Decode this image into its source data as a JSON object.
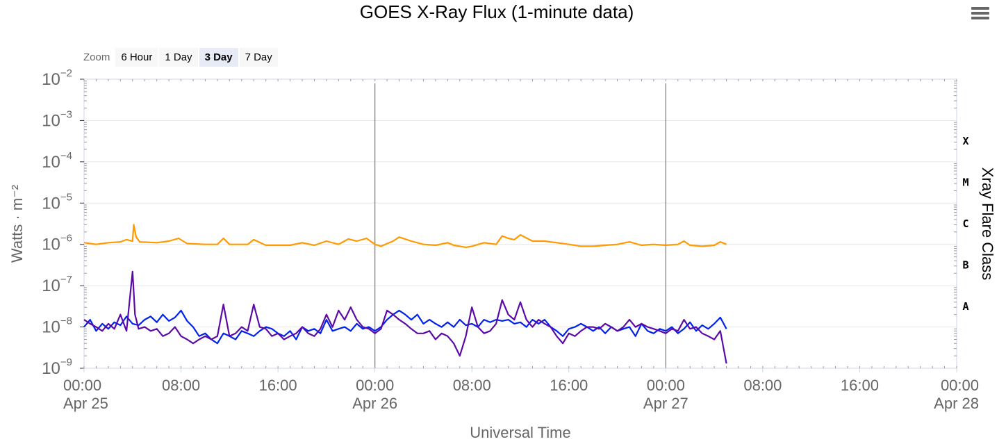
{
  "title": "GOES X-Ray Flux (1-minute data)",
  "menu": {
    "icon": "hamburger-menu-icon"
  },
  "zoom": {
    "label": "Zoom",
    "buttons": [
      {
        "label": "6 Hour",
        "active": false
      },
      {
        "label": "1 Day",
        "active": false
      },
      {
        "label": "3 Day",
        "active": true
      },
      {
        "label": "7 Day",
        "active": false
      }
    ]
  },
  "chart_data": {
    "type": "line",
    "title": "GOES X-Ray Flux (1-minute data)",
    "xlabel": "Universal Time",
    "ylabel": "Watts · m⁻²",
    "y_scale": "log",
    "ylim": [
      1e-09,
      0.01
    ],
    "xlim_hours": [
      0,
      72
    ],
    "grid": true,
    "legend": "none",
    "y_ticks": [
      {
        "base": "10",
        "exp": "−2",
        "value": 0.01
      },
      {
        "base": "10",
        "exp": "−3",
        "value": 0.001
      },
      {
        "base": "10",
        "exp": "−4",
        "value": 0.0001
      },
      {
        "base": "10",
        "exp": "−5",
        "value": 1e-05
      },
      {
        "base": "10",
        "exp": "−6",
        "value": 1e-06
      },
      {
        "base": "10",
        "exp": "−7",
        "value": 1e-07
      },
      {
        "base": "10",
        "exp": "−8",
        "value": 1e-08
      },
      {
        "base": "10",
        "exp": "−9",
        "value": 1e-09
      }
    ],
    "x_ticks": [
      {
        "hour": 0,
        "time": "00:00",
        "date": "Apr 25"
      },
      {
        "hour": 8,
        "time": "08:00",
        "date": ""
      },
      {
        "hour": 16,
        "time": "16:00",
        "date": ""
      },
      {
        "hour": 24,
        "time": "00:00",
        "date": "Apr 26"
      },
      {
        "hour": 32,
        "time": "08:00",
        "date": ""
      },
      {
        "hour": 40,
        "time": "16:00",
        "date": ""
      },
      {
        "hour": 48,
        "time": "00:00",
        "date": "Apr 27"
      },
      {
        "hour": 56,
        "time": "08:00",
        "date": ""
      },
      {
        "hour": 64,
        "time": "16:00",
        "date": ""
      },
      {
        "hour": 72,
        "time": "00:00",
        "date": "Apr 28"
      }
    ],
    "day_boundaries_hours": [
      24,
      48
    ],
    "right_axis": {
      "label": "Xray Flare Class",
      "classes": [
        {
          "label": "X",
          "value": 0.000316
        },
        {
          "label": "M",
          "value": 3.16e-05
        },
        {
          "label": "C",
          "value": 3.16e-06
        },
        {
          "label": "B",
          "value": 3.16e-07
        },
        {
          "label": "A",
          "value": 3.16e-08
        }
      ]
    },
    "series": [
      {
        "color": "#ff9900",
        "points": [
          [
            0,
            1.1e-06
          ],
          [
            1,
            1e-06
          ],
          [
            2,
            1.1e-06
          ],
          [
            3,
            1.15e-06
          ],
          [
            3.5,
            1.3e-06
          ],
          [
            4,
            1.2e-06
          ],
          [
            4.1,
            3e-06
          ],
          [
            4.3,
            1.5e-06
          ],
          [
            4.6,
            1.15e-06
          ],
          [
            6,
            1.1e-06
          ],
          [
            7,
            1.2e-06
          ],
          [
            7.8,
            1.4e-06
          ],
          [
            8.5,
            1.05e-06
          ],
          [
            10,
            1e-06
          ],
          [
            11,
            1e-06
          ],
          [
            11.5,
            1.4e-06
          ],
          [
            12,
            1e-06
          ],
          [
            13.5,
            1e-06
          ],
          [
            14,
            1.3e-06
          ],
          [
            15,
            9.5e-07
          ],
          [
            17,
            9.5e-07
          ],
          [
            18,
            1.1e-06
          ],
          [
            19,
            9.5e-07
          ],
          [
            20,
            1.2e-06
          ],
          [
            21,
            1e-06
          ],
          [
            21.8,
            1.35e-06
          ],
          [
            22.5,
            1.2e-06
          ],
          [
            23.3,
            1.4e-06
          ],
          [
            24,
            1e-06
          ],
          [
            24.5,
            9e-07
          ],
          [
            25.5,
            1.2e-06
          ],
          [
            26,
            1.5e-06
          ],
          [
            27,
            1.2e-06
          ],
          [
            28,
            1e-06
          ],
          [
            29,
            9.5e-07
          ],
          [
            30,
            1.1e-06
          ],
          [
            30.5,
            9.5e-07
          ],
          [
            31.5,
            8.5e-07
          ],
          [
            32,
            9e-07
          ],
          [
            33,
            1.1e-06
          ],
          [
            34,
            1e-06
          ],
          [
            34.5,
            1.6e-06
          ],
          [
            35,
            1.4e-06
          ],
          [
            35.5,
            1.3e-06
          ],
          [
            36,
            1.7e-06
          ],
          [
            37,
            1.2e-06
          ],
          [
            38,
            1.2e-06
          ],
          [
            39,
            1.1e-06
          ],
          [
            40,
            1e-06
          ],
          [
            41,
            9e-07
          ],
          [
            42,
            9e-07
          ],
          [
            43,
            9.5e-07
          ],
          [
            44,
            1e-06
          ],
          [
            45,
            1.15e-06
          ],
          [
            46,
            9.5e-07
          ],
          [
            47,
            1e-06
          ],
          [
            48,
            9.5e-07
          ],
          [
            49,
            1e-06
          ],
          [
            49.5,
            1.2e-06
          ],
          [
            50,
            9.5e-07
          ],
          [
            51,
            9e-07
          ],
          [
            52,
            9.5e-07
          ],
          [
            52.5,
            1.15e-06
          ],
          [
            53,
            1e-06
          ]
        ]
      },
      {
        "color": "#0022ee",
        "points": [
          [
            0,
            1e-08
          ],
          [
            0.5,
            1.5e-08
          ],
          [
            1,
            8e-09
          ],
          [
            1.5,
            1.2e-08
          ],
          [
            2,
            9e-09
          ],
          [
            2.5,
            1.3e-08
          ],
          [
            3,
            1.1e-08
          ],
          [
            3.5,
            1.8e-08
          ],
          [
            4,
            1.2e-08
          ],
          [
            4.5,
            1.1e-08
          ],
          [
            5,
            1.5e-08
          ],
          [
            5.5,
            1.8e-08
          ],
          [
            6,
            1.3e-08
          ],
          [
            6.5,
            2e-08
          ],
          [
            7,
            1.4e-08
          ],
          [
            7.5,
            1.7e-08
          ],
          [
            8,
            2.5e-08
          ],
          [
            8.5,
            1.4e-08
          ],
          [
            9,
            1e-08
          ],
          [
            9.5,
            6e-09
          ],
          [
            10,
            7e-09
          ],
          [
            10.5,
            5e-09
          ],
          [
            11,
            4e-09
          ],
          [
            11.5,
            7e-09
          ],
          [
            12,
            6e-09
          ],
          [
            12.5,
            5e-09
          ],
          [
            13,
            8e-09
          ],
          [
            13.5,
            7e-09
          ],
          [
            14,
            6e-09
          ],
          [
            14.5,
            8e-09
          ],
          [
            15,
            1e-08
          ],
          [
            15.5,
            9e-09
          ],
          [
            16,
            7e-09
          ],
          [
            16.5,
            6e-09
          ],
          [
            17,
            8e-09
          ],
          [
            17.5,
            5e-09
          ],
          [
            18,
            1e-08
          ],
          [
            18.5,
            8e-09
          ],
          [
            19,
            9e-09
          ],
          [
            19.5,
            7e-09
          ],
          [
            20,
            1.5e-08
          ],
          [
            20.5,
            8e-09
          ],
          [
            21,
            9e-09
          ],
          [
            21.5,
            1e-08
          ],
          [
            22,
            8e-09
          ],
          [
            22.5,
            1.2e-08
          ],
          [
            23,
            9e-09
          ],
          [
            23.5,
            1e-08
          ],
          [
            24,
            8e-09
          ],
          [
            24.5,
            1e-08
          ],
          [
            25,
            1.5e-08
          ],
          [
            25.5,
            2e-08
          ],
          [
            26,
            2.5e-08
          ],
          [
            26.5,
            2e-08
          ],
          [
            27,
            1.5e-08
          ],
          [
            27.5,
            2e-08
          ],
          [
            28,
            1.2e-08
          ],
          [
            28.5,
            1.5e-08
          ],
          [
            29,
            1.2e-08
          ],
          [
            29.5,
            1e-08
          ],
          [
            30,
            1.3e-08
          ],
          [
            30.5,
            1e-08
          ],
          [
            31,
            1.5e-08
          ],
          [
            31.5,
            1.1e-08
          ],
          [
            32,
            1.2e-08
          ],
          [
            32.5,
            1e-08
          ],
          [
            33,
            1.5e-08
          ],
          [
            33.5,
            1.3e-08
          ],
          [
            34,
            1.5e-08
          ],
          [
            34.5,
            1.4e-08
          ],
          [
            35,
            1.5e-08
          ],
          [
            35.5,
            1.2e-08
          ],
          [
            36,
            1.3e-08
          ],
          [
            36.5,
            1e-08
          ],
          [
            37,
            1.5e-08
          ],
          [
            37.5,
            1.2e-08
          ],
          [
            38,
            1.5e-08
          ],
          [
            38.5,
            1e-08
          ],
          [
            39,
            8e-09
          ],
          [
            39.5,
            6e-09
          ],
          [
            40,
            9e-09
          ],
          [
            40.5,
            1e-08
          ],
          [
            41,
            1.2e-08
          ],
          [
            41.5,
            1e-08
          ],
          [
            42,
            8e-09
          ],
          [
            42.5,
            1e-08
          ],
          [
            43,
            7e-09
          ],
          [
            43.5,
            1e-08
          ],
          [
            44,
            8e-09
          ],
          [
            44.5,
            9e-09
          ],
          [
            45,
            1e-08
          ],
          [
            45.5,
            6e-09
          ],
          [
            46,
            1.2e-08
          ],
          [
            46.5,
            8e-09
          ],
          [
            47,
            7e-09
          ],
          [
            47.5,
            9e-09
          ],
          [
            48,
            8e-09
          ],
          [
            48.5,
            1e-08
          ],
          [
            49,
            7e-09
          ],
          [
            49.5,
            9e-09
          ],
          [
            50,
            1.3e-08
          ],
          [
            50.5,
            8e-09
          ],
          [
            51,
            1.1e-08
          ],
          [
            51.5,
            9e-09
          ],
          [
            52,
            1.2e-08
          ],
          [
            52.5,
            1.7e-08
          ],
          [
            53,
            9e-09
          ]
        ]
      },
      {
        "color": "#5b0aa8",
        "points": [
          [
            0,
            1.5e-08
          ],
          [
            0.5,
            1.2e-08
          ],
          [
            1,
            1e-08
          ],
          [
            1.5,
            8e-09
          ],
          [
            2,
            1.2e-08
          ],
          [
            2.5,
            9e-09
          ],
          [
            3,
            2e-08
          ],
          [
            3.5,
            8e-09
          ],
          [
            4,
            2.2e-07
          ],
          [
            4.2,
            2e-08
          ],
          [
            4.5,
            9e-09
          ],
          [
            5,
            1e-08
          ],
          [
            5.5,
            8e-09
          ],
          [
            6,
            9e-09
          ],
          [
            6.5,
            6e-09
          ],
          [
            7,
            7e-09
          ],
          [
            7.5,
            1e-08
          ],
          [
            8,
            6e-09
          ],
          [
            8.5,
            5e-09
          ],
          [
            9,
            4e-09
          ],
          [
            9.5,
            5e-09
          ],
          [
            10,
            6e-09
          ],
          [
            10.5,
            5e-09
          ],
          [
            11,
            6e-09
          ],
          [
            11.5,
            3.5e-08
          ],
          [
            12,
            6e-09
          ],
          [
            12.5,
            7e-09
          ],
          [
            13,
            1e-08
          ],
          [
            13.5,
            8e-09
          ],
          [
            14,
            3.5e-08
          ],
          [
            14.5,
            1e-08
          ],
          [
            15,
            9e-09
          ],
          [
            15.5,
            6e-09
          ],
          [
            16,
            7e-09
          ],
          [
            16.5,
            5e-09
          ],
          [
            17,
            6e-09
          ],
          [
            17.5,
            7e-09
          ],
          [
            18,
            1e-08
          ],
          [
            18.5,
            7e-09
          ],
          [
            19,
            6e-09
          ],
          [
            19.5,
            9e-09
          ],
          [
            20,
            2e-08
          ],
          [
            20.5,
            1e-08
          ],
          [
            21,
            2.5e-08
          ],
          [
            21.5,
            1.5e-08
          ],
          [
            22,
            3e-08
          ],
          [
            22.5,
            1.5e-08
          ],
          [
            23,
            1e-08
          ],
          [
            23.5,
            9e-09
          ],
          [
            24,
            7e-09
          ],
          [
            24.5,
            9e-09
          ],
          [
            25,
            2.5e-08
          ],
          [
            25.5,
            2e-08
          ],
          [
            26,
            1.5e-08
          ],
          [
            26.5,
            1.2e-08
          ],
          [
            27,
            9e-09
          ],
          [
            27.5,
            7e-09
          ],
          [
            28,
            7e-09
          ],
          [
            28.5,
            8e-09
          ],
          [
            29,
            5e-09
          ],
          [
            29.5,
            7e-09
          ],
          [
            30,
            6e-09
          ],
          [
            30.5,
            4e-09
          ],
          [
            31,
            2e-09
          ],
          [
            31.5,
            6e-09
          ],
          [
            32,
            3e-08
          ],
          [
            32.5,
            1e-08
          ],
          [
            33,
            7e-09
          ],
          [
            33.5,
            8e-09
          ],
          [
            34,
            1.2e-08
          ],
          [
            34.5,
            4.5e-08
          ],
          [
            35,
            2e-08
          ],
          [
            35.5,
            1.5e-08
          ],
          [
            36,
            4e-08
          ],
          [
            36.5,
            1.5e-08
          ],
          [
            37,
            1e-08
          ],
          [
            37.5,
            1.5e-08
          ],
          [
            38,
            1.2e-08
          ],
          [
            38.5,
            1e-08
          ],
          [
            39,
            6e-09
          ],
          [
            39.5,
            4e-09
          ],
          [
            40,
            7e-09
          ],
          [
            40.5,
            6e-09
          ],
          [
            41,
            8e-09
          ],
          [
            41.5,
            1e-08
          ],
          [
            42,
            1e-08
          ],
          [
            42.5,
            9e-09
          ],
          [
            43,
            1.2e-08
          ],
          [
            43.5,
            1e-08
          ],
          [
            44,
            8e-09
          ],
          [
            44.5,
            1e-08
          ],
          [
            45,
            1.5e-08
          ],
          [
            45.5,
            1e-08
          ],
          [
            46,
            1.2e-08
          ],
          [
            46.5,
            1e-08
          ],
          [
            47,
            9e-09
          ],
          [
            47.5,
            8e-09
          ],
          [
            48,
            7e-09
          ],
          [
            48.5,
            9e-09
          ],
          [
            49,
            8e-09
          ],
          [
            49.5,
            1.5e-08
          ],
          [
            50,
            9e-09
          ],
          [
            50.5,
            1e-08
          ],
          [
            51,
            7e-09
          ],
          [
            51.5,
            6e-09
          ],
          [
            52,
            5e-09
          ],
          [
            52.5,
            8e-09
          ],
          [
            53,
            1.3e-09
          ]
        ]
      }
    ]
  }
}
